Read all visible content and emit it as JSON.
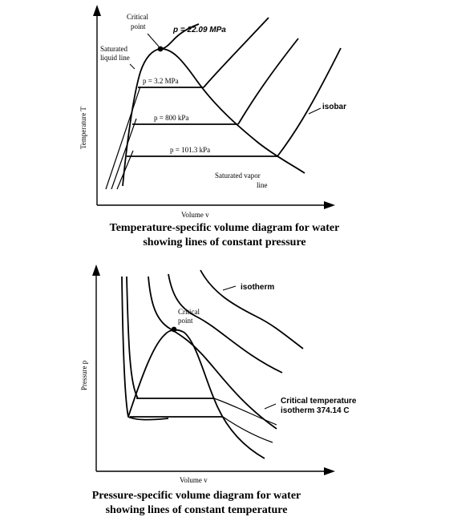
{
  "diagram1": {
    "labels": {
      "critical_point_1": "Critical",
      "critical_point_2": "point",
      "critical_pressure": "p = 22.09 MPa",
      "sat_liquid_1": "Saturated",
      "sat_liquid_2": "liquid line",
      "p_32": "p = 3.2 MPa",
      "p_800": "p = 800 kPa",
      "p_1013": "p = 101.3 kPa",
      "isobar": "isobar",
      "sat_vapor_1": "Saturated vapor",
      "sat_vapor_2": "line"
    },
    "y_axis": "Temperature T",
    "x_axis": "Volume v",
    "caption_1": "Temperature-specific volume diagram for water",
    "caption_2": "showing lines of constant pressure"
  },
  "diagram2": {
    "labels": {
      "isotherm": "isotherm",
      "critical_point_1": "Critical",
      "critical_point_2": "point",
      "critical_temp_1": "Critical temperature",
      "critical_temp_2": "isotherm 374.14 C"
    },
    "y_axis": "Pressure p",
    "x_axis": "Volume v",
    "caption_1": "Pressure-specific volume diagram for water",
    "caption_2": "showing lines of constant temperature"
  }
}
